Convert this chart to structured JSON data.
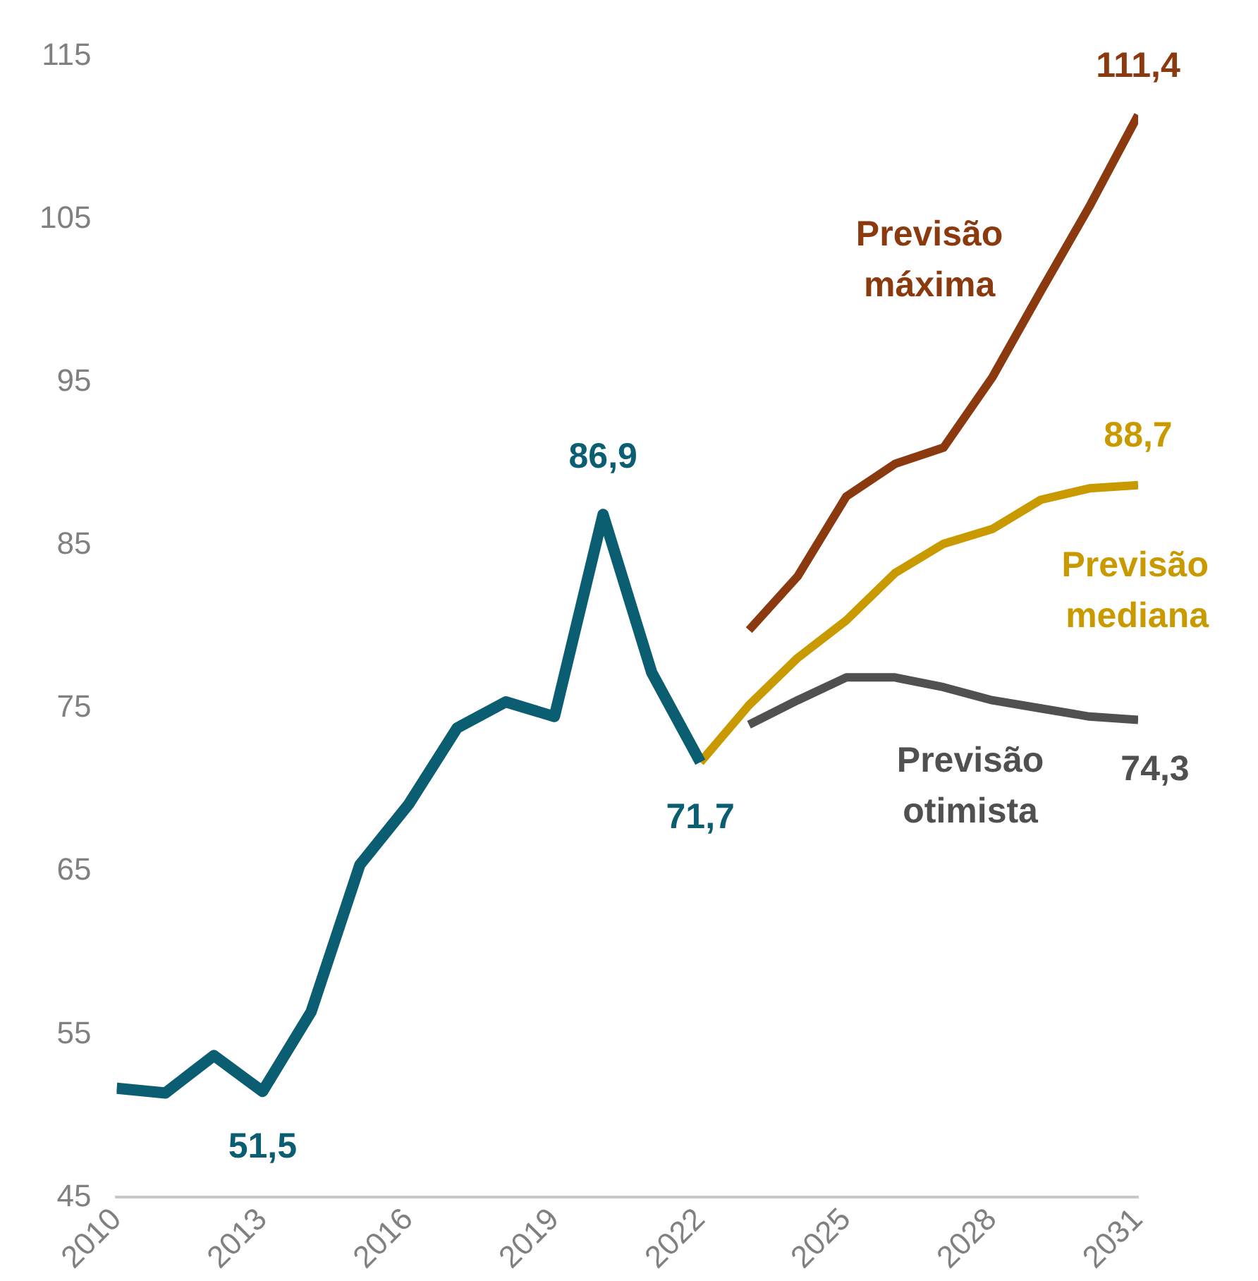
{
  "chart_data": {
    "type": "line",
    "x": [
      2010,
      2011,
      2012,
      2013,
      2014,
      2015,
      2016,
      2017,
      2018,
      2019,
      2020,
      2021,
      2022
    ],
    "series": [
      {
        "color": "#0b5e72",
        "values": [
          51.7,
          51.4,
          53.7,
          51.5,
          56.4,
          65.4,
          69.1,
          73.8,
          75.4,
          74.5,
          86.9,
          77.2,
          71.7
        ],
        "value_labels": [
          null,
          null,
          null,
          "51,5",
          null,
          null,
          null,
          null,
          null,
          null,
          "86,9",
          null,
          "71,7"
        ]
      },
      {
        "name": "Previsão máxima",
        "color": "#8b3a0f",
        "x": [
          2023,
          2024,
          2025,
          2026,
          2027,
          2028,
          2029,
          2030,
          2031
        ],
        "values": [
          79.8,
          83.1,
          88.0,
          90.0,
          91.0,
          95.3,
          100.6,
          105.8,
          111.4
        ],
        "value_labels": [
          null,
          null,
          null,
          null,
          null,
          null,
          null,
          null,
          "111,4"
        ]
      },
      {
        "name": "Previsão mediana",
        "color": "#c99a00",
        "x": [
          2022,
          2023,
          2024,
          2025,
          2026,
          2027,
          2028,
          2029,
          2030,
          2031
        ],
        "values": [
          71.7,
          75.2,
          78.1,
          80.4,
          83.3,
          85.1,
          86.0,
          87.8,
          88.5,
          88.7
        ],
        "value_labels": [
          null,
          null,
          null,
          null,
          null,
          null,
          null,
          null,
          null,
          "88,7"
        ]
      },
      {
        "name": "Previsão otimista",
        "color": "#505050",
        "x": [
          2023,
          2024,
          2025,
          2026,
          2027,
          2028,
          2029,
          2030,
          2031
        ],
        "values": [
          74.0,
          75.5,
          76.9,
          76.9,
          76.3,
          75.5,
          75.0,
          74.5,
          74.3
        ],
        "value_labels": [
          null,
          null,
          null,
          null,
          null,
          null,
          null,
          null,
          "74,3"
        ]
      }
    ],
    "xlim": [
      2010,
      2031
    ],
    "xticks": [
      2010,
      2013,
      2016,
      2019,
      2022,
      2025,
      2028,
      2031
    ],
    "ylim": [
      45,
      115
    ],
    "yticks": [
      45,
      55,
      65,
      75,
      85,
      95,
      105,
      115
    ],
    "grid": false,
    "legend": false,
    "marker": "none",
    "line_style": "solid"
  }
}
